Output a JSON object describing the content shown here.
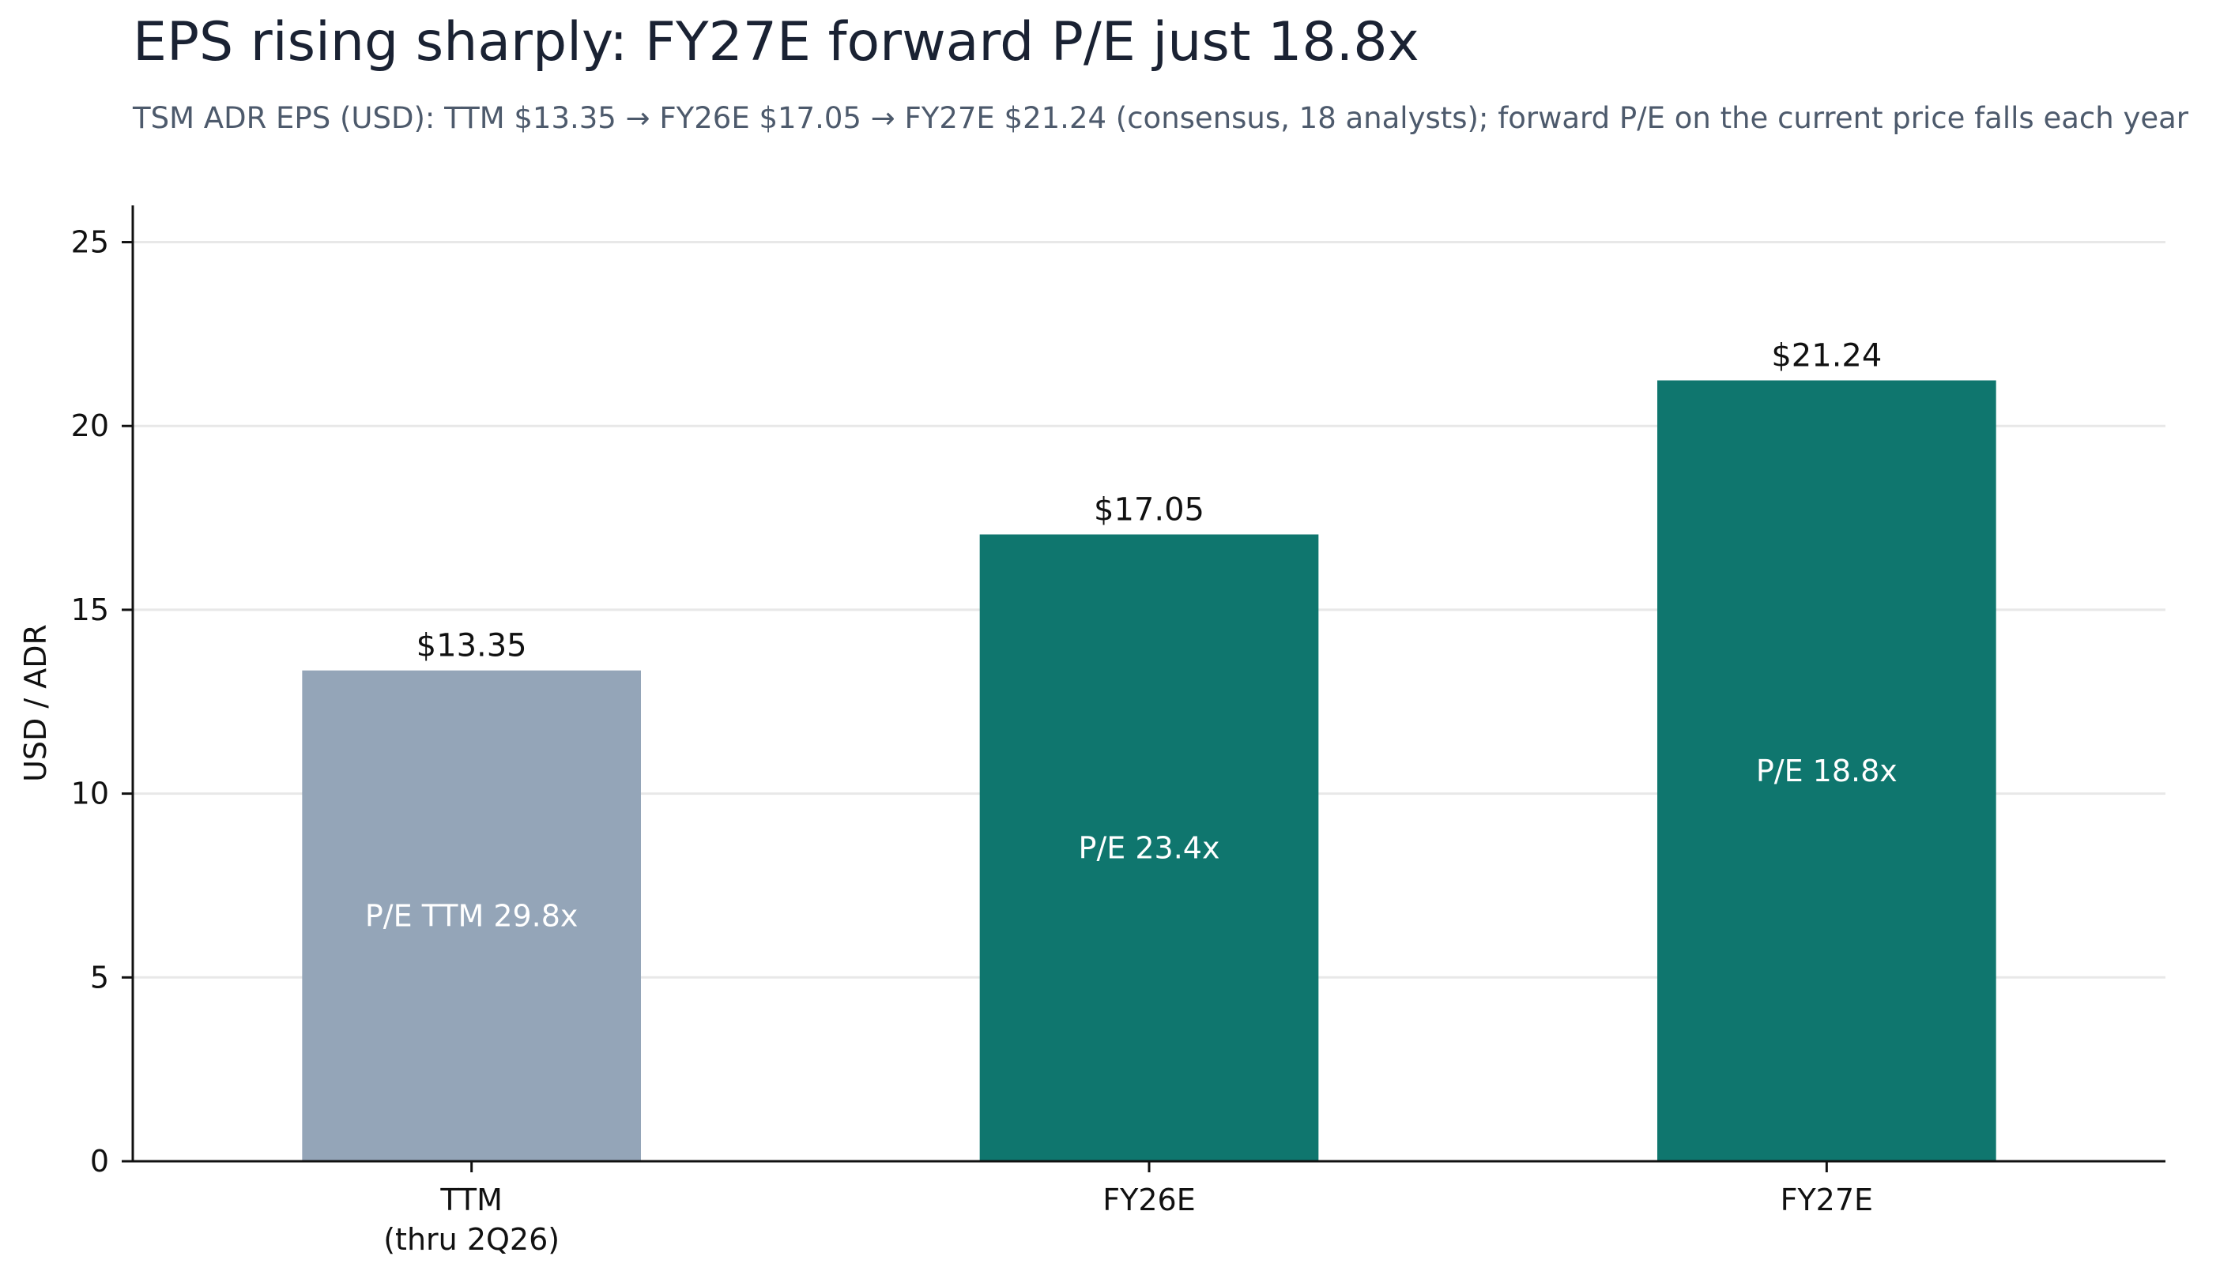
{
  "title": "EPS rising sharply: FY27E forward P/E just 18.8x",
  "subtitle": "TSM ADR EPS (USD): TTM $13.35 → FY26E $17.05 → FY27E $21.24 (consensus, 18 analysts); forward P/E on the current price falls each year",
  "chart_data": {
    "type": "bar",
    "title": "EPS rising sharply: FY27E forward P/E just 18.8x",
    "subtitle": "TSM ADR EPS (USD): TTM $13.35 → FY26E $17.05 → FY27E $21.24 (consensus, 18 analysts); forward P/E on the current price falls each year",
    "xlabel": "",
    "ylabel": "USD / ADR",
    "ylim": [
      0,
      26
    ],
    "yticks": [
      0,
      5,
      10,
      15,
      20,
      25
    ],
    "grid": "horizontal",
    "categories": [
      [
        "TTM",
        "(thru 2Q26)"
      ],
      [
        "FY26E"
      ],
      [
        "FY27E"
      ]
    ],
    "values": [
      13.35,
      17.05,
      21.24
    ],
    "value_labels": [
      "$13.35",
      "$17.05",
      "$21.24"
    ],
    "inner_labels": [
      "P/E TTM 29.8x",
      "P/E 23.4x",
      "P/E 18.8x"
    ],
    "bar_colors": [
      "#94a5b8",
      "#0f766e",
      "#0f766e"
    ],
    "colors": {
      "grid": "#e8e8e8",
      "axis": "#111111"
    }
  }
}
